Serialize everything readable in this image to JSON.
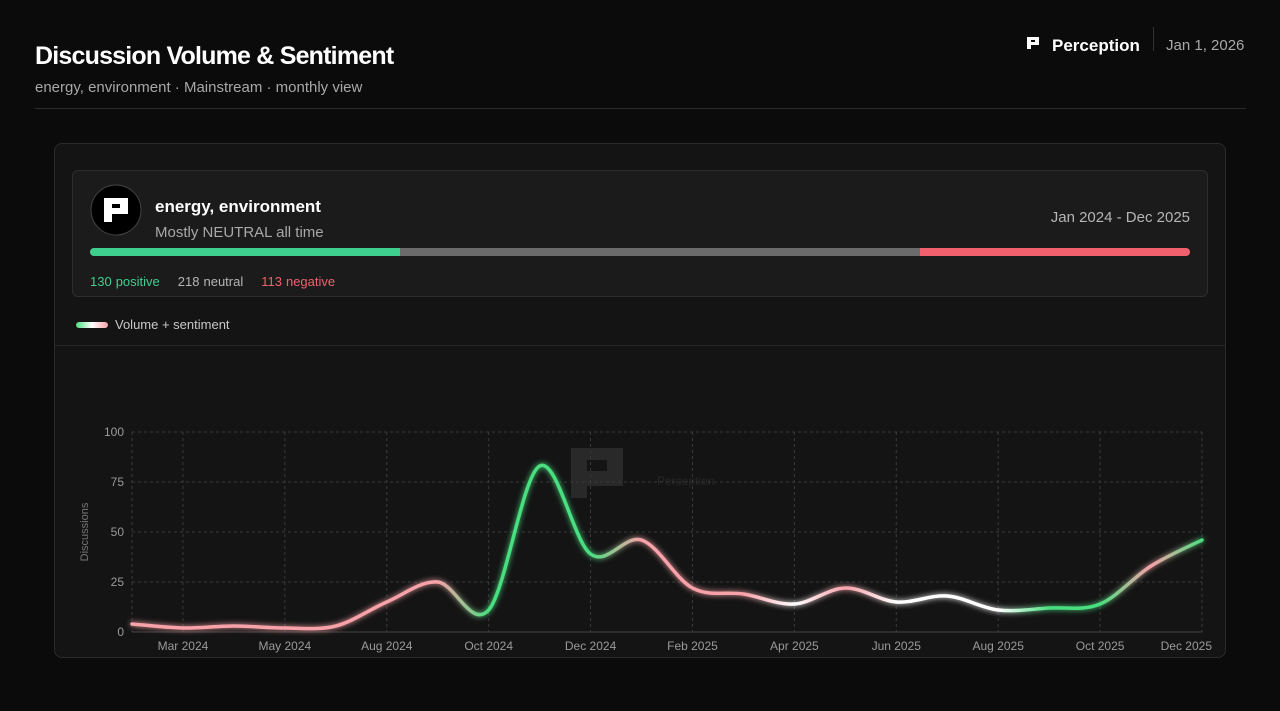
{
  "header": {
    "title": "Discussion Volume & Sentiment",
    "subtitle": "energy, environment · Mainstream · monthly view",
    "brand": "Perception",
    "date": "Jan 1, 2026"
  },
  "summary": {
    "topic": "energy, environment",
    "tagline": "Mostly NEUTRAL all time",
    "range": "Jan 2024 - Dec 2025",
    "counts": [
      {
        "value": 130,
        "label": "positive",
        "color": "#3ecf8e"
      },
      {
        "value": 218,
        "label": "neutral",
        "color": "#6b6b6b"
      },
      {
        "value": 113,
        "label": "negative",
        "color": "#f0616d"
      }
    ]
  },
  "chart_data": {
    "type": "line",
    "y_label": "Discussions",
    "watermark": "Perception",
    "categories": [
      null,
      "Mar 2024",
      null,
      "May 2024",
      null,
      "Aug 2024",
      null,
      "Oct 2024",
      null,
      "Dec 2024",
      null,
      "Feb 2025",
      null,
      "Apr 2025",
      null,
      "Jun 2025",
      null,
      "Aug 2025",
      null,
      "Oct 2025",
      null,
      "Dec 2025"
    ],
    "series": [
      {
        "name": "Volume + sentiment",
        "values": [
          4,
          2,
          3,
          2,
          3,
          15,
          25,
          11,
          83,
          39,
          46,
          22,
          19,
          14,
          22,
          15,
          18,
          11,
          12,
          14,
          33,
          46
        ],
        "point_colors": [
          "#f7a1a8",
          "#f7a1a8",
          "#f7a1a8",
          "#f7a1a8",
          "#f7a1a8",
          "#f7a1a8",
          "#f7a1a8",
          "#4ade80",
          "#4ade80",
          "#4ade80",
          "#f7a1a8",
          "#f7a1a8",
          "#f7a1a8",
          "#ffffff",
          "#f7a1a8",
          "#ffffff",
          "#ffffff",
          "#ffffff",
          "#4ade80",
          "#4ade80",
          "#f7a1a8",
          "#4ade80"
        ]
      }
    ],
    "ylim": [
      0,
      100
    ],
    "yticks": [
      0,
      25,
      50,
      75,
      100
    ],
    "grid": true
  }
}
